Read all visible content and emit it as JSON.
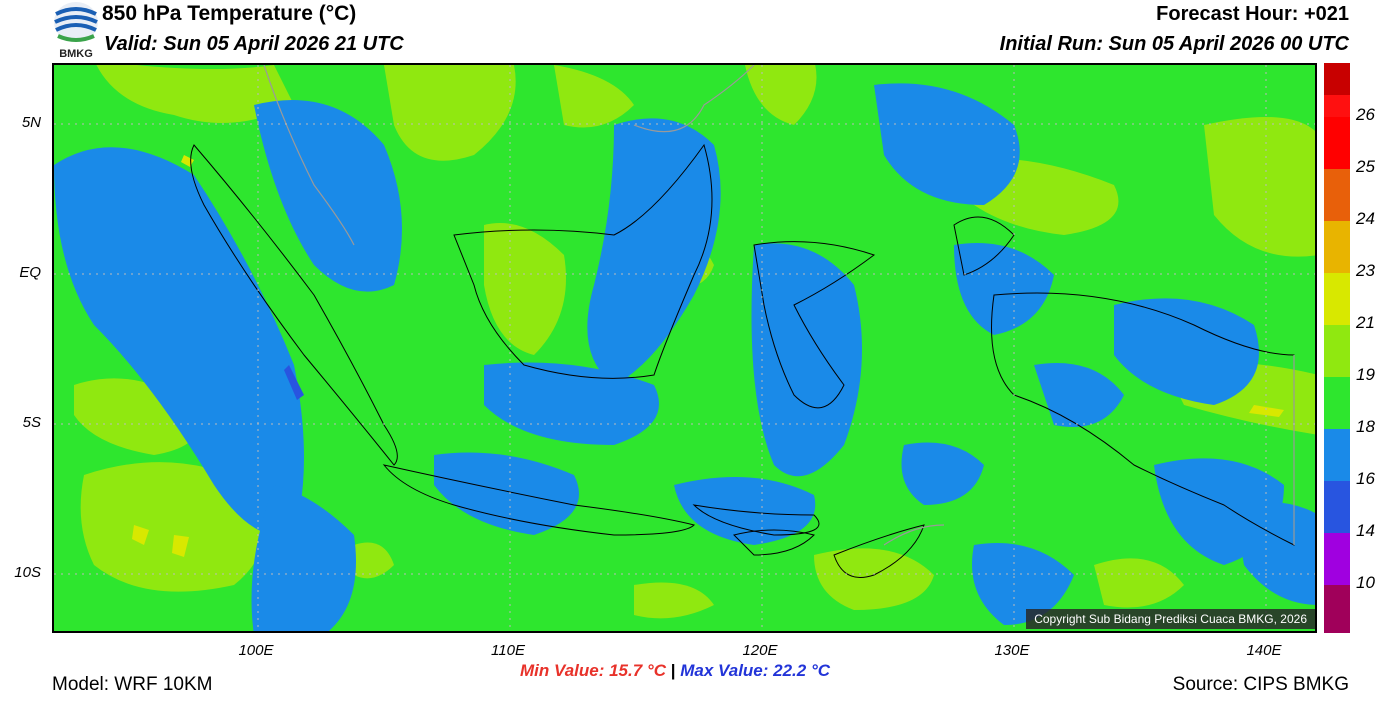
{
  "header": {
    "title": "850 hPa Temperature (°C)",
    "valid": "Valid: Sun 05 April 2026 21 UTC",
    "forecast_hour": "Forecast Hour: +021",
    "initial_run": "Initial Run: Sun 05 April 2026 00 UTC",
    "logo_text": "BMKG"
  },
  "map": {
    "lat_labels": [
      "5N",
      "EQ",
      "5S",
      "10S"
    ],
    "lon_labels": [
      "100E",
      "110E",
      "120E",
      "130E",
      "140E"
    ],
    "copyright": "Copyright Sub Bidang Prediksi Cuaca BMKG, 2026"
  },
  "colorbar": {
    "labels": [
      "26",
      "25",
      "24",
      "23",
      "21",
      "19",
      "18",
      "16",
      "14",
      "10"
    ],
    "colors": [
      "#c80000",
      "#ff1010",
      "#ff0000",
      "#e8600a",
      "#e8b400",
      "#d8e800",
      "#90e810",
      "#2ee62e",
      "#1a8ae8",
      "#2855e0",
      "#a000e0",
      "#a0005a"
    ]
  },
  "footer": {
    "min_value": "Min Value: 15.7 °C",
    "separator": "|",
    "max_value": "Max Value: 22.2 °C",
    "model": "Model: WRF 10KM",
    "source": "Source: CIPS BMKG"
  }
}
